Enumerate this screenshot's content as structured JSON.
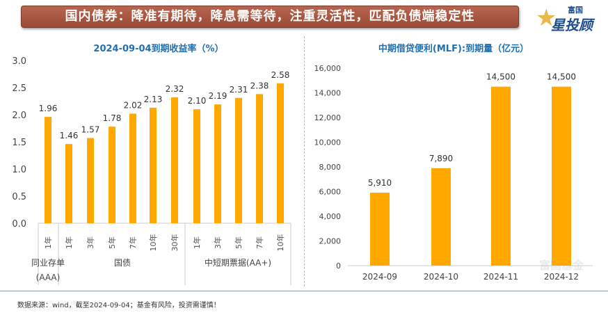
{
  "banner": {
    "title": "国内债券：降准有期待，降息需等待，注重灵活性，匹配负债端稳定性"
  },
  "logo": {
    "line1": "富国",
    "line2": "星投顾"
  },
  "watermark": "富国基金",
  "footer": "数据来源：wind，截至2024-09-04；基金有风险，投资需谨慎！",
  "colors": {
    "bar": "#FFA800",
    "title": "#1F6FB2",
    "banner": "#A5533E"
  },
  "chart_data": [
    {
      "type": "bar",
      "title": "2024-09-04到期收益率（%）",
      "ylim": [
        0,
        3.0
      ],
      "yticks": [
        "0.0",
        "0.5",
        "1.0",
        "1.5",
        "2.0",
        "2.5",
        "3.0"
      ],
      "categories": [
        "1年",
        "1年",
        "3年",
        "5年",
        "7年",
        "10年",
        "30年",
        "1年",
        "3年",
        "5年",
        "7年",
        "10年"
      ],
      "groups": [
        {
          "label": "同业存单",
          "label2": "(AAA)",
          "count": 1
        },
        {
          "label": "国债",
          "label2": "",
          "count": 6
        },
        {
          "label": "中短期票据(AA+)",
          "label2": "",
          "count": 5
        }
      ],
      "values": [
        1.96,
        1.46,
        1.57,
        1.78,
        2.02,
        2.13,
        2.32,
        2.1,
        2.19,
        2.31,
        2.38,
        2.58
      ],
      "labels": [
        "1.96",
        "1.46",
        "1.57",
        "1.78",
        "2.02",
        "2.13",
        "2.32",
        "2.10",
        "2.19",
        "2.31",
        "2.38",
        "2.58"
      ],
      "grid": false
    },
    {
      "type": "bar",
      "title": "中期借贷便利(MLF):到期量（亿元）",
      "ylim": [
        0,
        16000
      ],
      "yticks": [
        "0",
        "2,000",
        "4,000",
        "6,000",
        "8,000",
        "10,000",
        "12,000",
        "14,000",
        "16,000"
      ],
      "categories": [
        "2024-09",
        "2024-10",
        "2024-11",
        "2024-12"
      ],
      "values": [
        5910,
        7890,
        14500,
        14500
      ],
      "labels": [
        "5,910",
        "7,890",
        "14,500",
        "14,500"
      ],
      "grid": false
    }
  ]
}
